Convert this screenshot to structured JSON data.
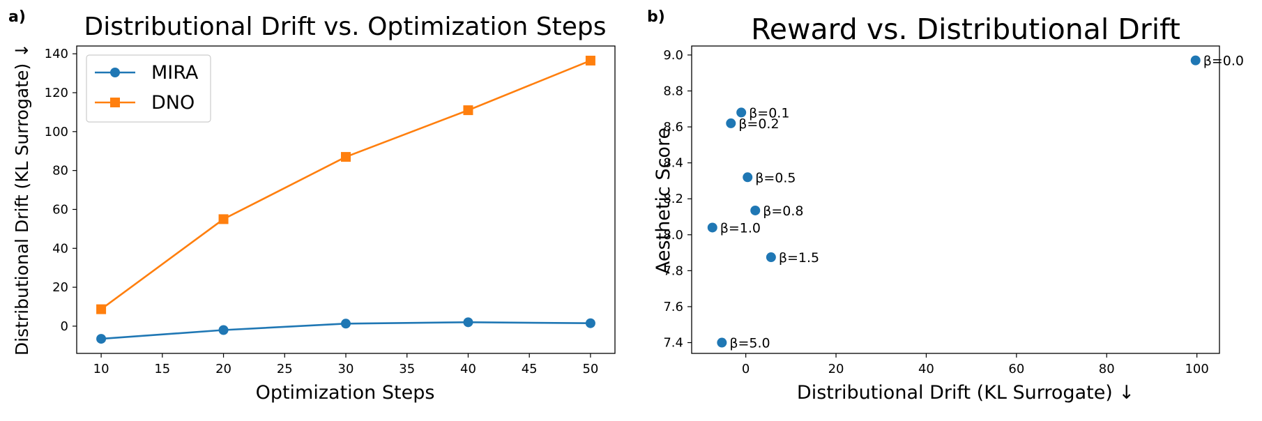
{
  "chart_data": [
    {
      "panel_label": "a)",
      "type": "line",
      "title": "Distributional Drift vs. Optimization Steps",
      "xlabel": "Optimization Steps",
      "ylabel": "Distributional Drift (KL Surrogate) ↓",
      "x": [
        10,
        20,
        30,
        40,
        50
      ],
      "xlim": [
        8,
        52
      ],
      "ylim": [
        -14,
        144
      ],
      "xticks": [
        10,
        15,
        20,
        25,
        30,
        35,
        40,
        45,
        50
      ],
      "yticks": [
        0,
        20,
        40,
        60,
        80,
        100,
        120,
        140
      ],
      "legend_position": "top-left",
      "series": [
        {
          "name": "MIRA",
          "marker": "circle",
          "color": "#1f77b4",
          "values": [
            -6.5,
            -2,
            1.3,
            2,
            1.5
          ]
        },
        {
          "name": "DNO",
          "marker": "square",
          "color": "#ff7f0e",
          "values": [
            8.7,
            55,
            87,
            111,
            136.5
          ]
        }
      ]
    },
    {
      "panel_label": "b)",
      "type": "scatter",
      "title": "Reward vs. Distributional Drift",
      "xlabel": "Distributional Drift (KL Surrogate) ↓",
      "ylabel": "Aesthetic Score",
      "xlim": [
        -12,
        105
      ],
      "ylim": [
        7.34,
        9.05
      ],
      "xticks": [
        0,
        20,
        40,
        60,
        80,
        100
      ],
      "yticks": [
        7.4,
        7.6,
        7.8,
        8.0,
        8.2,
        8.4,
        8.6,
        8.8,
        9.0
      ],
      "color": "#1f77b4",
      "points": [
        {
          "label": "β=0.0",
          "x": 99.7,
          "y": 8.97
        },
        {
          "label": "β=0.1",
          "x": -1,
          "y": 8.68
        },
        {
          "label": "β=0.2",
          "x": -3.3,
          "y": 8.62
        },
        {
          "label": "β=0.5",
          "x": 0.4,
          "y": 8.32
        },
        {
          "label": "β=0.8",
          "x": 2.1,
          "y": 8.135
        },
        {
          "label": "β=1.0",
          "x": -7.4,
          "y": 8.04
        },
        {
          "label": "β=1.5",
          "x": 5.6,
          "y": 7.875
        },
        {
          "label": "β=5.0",
          "x": -5.3,
          "y": 7.4
        }
      ]
    }
  ]
}
